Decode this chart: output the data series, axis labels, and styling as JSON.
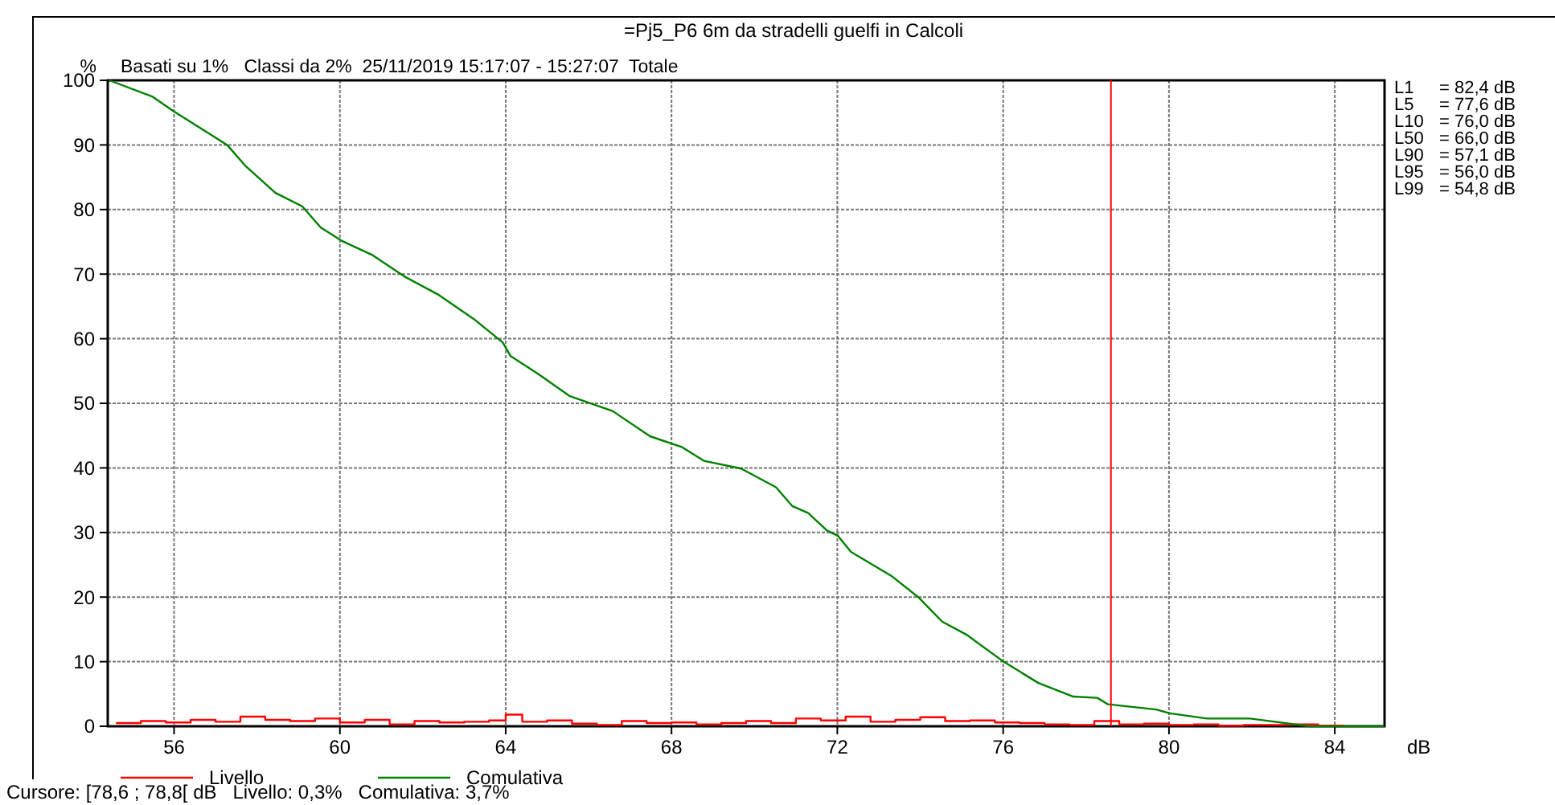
{
  "chart_data": {
    "type": "line",
    "title": "=Pj5_P6 6m da stradelli guelfi in Calcoli",
    "subtitle": "Basati su 1%   Classi da 2%  25/11/2019 15:17:07 - 15:27:07  Totale",
    "xlabel": "dB",
    "ylabel": "%",
    "xlim": [
      54.4,
      85.2
    ],
    "xticks": [
      56,
      60,
      64,
      68,
      72,
      76,
      80,
      84
    ],
    "ylim": [
      0,
      100
    ],
    "yticks": [
      0,
      10,
      20,
      30,
      40,
      50,
      60,
      70,
      80,
      90,
      100
    ],
    "grid": true,
    "legend": "bottom",
    "marker": "none",
    "line_style": "solid",
    "series": [
      {
        "name": "Livello",
        "type": "step",
        "color": "#ff0000",
        "x": [
          54.6,
          55.2,
          55.8,
          56.4,
          57.0,
          57.6,
          58.2,
          58.8,
          59.4,
          60.0,
          60.6,
          61.2,
          61.8,
          62.4,
          63.0,
          63.6,
          64.0,
          64.4,
          65.0,
          65.6,
          66.2,
          66.8,
          67.4,
          68.0,
          68.6,
          69.2,
          69.8,
          70.4,
          71.0,
          71.6,
          72.2,
          72.8,
          73.4,
          74.0,
          74.6,
          75.2,
          75.8,
          76.4,
          77.0,
          77.6,
          78.2,
          78.8,
          79.4,
          80.0,
          80.6,
          81.2,
          81.8,
          82.4,
          83.0,
          83.6,
          84.2
        ],
        "values": [
          0.5,
          0.8,
          0.6,
          1.0,
          0.7,
          1.5,
          1.0,
          0.8,
          1.2,
          0.6,
          1.0,
          0.3,
          0.8,
          0.6,
          0.7,
          0.9,
          1.8,
          0.7,
          0.9,
          0.4,
          0.2,
          0.8,
          0.5,
          0.6,
          0.3,
          0.5,
          0.8,
          0.5,
          1.2,
          0.9,
          1.5,
          0.7,
          1.0,
          1.4,
          0.8,
          0.9,
          0.6,
          0.5,
          0.3,
          0.2,
          0.8,
          0.3,
          0.4,
          0.2,
          0.3,
          0.1,
          0.2,
          0.2,
          0.3,
          0.1,
          0.0
        ]
      },
      {
        "name": "Comulativa",
        "type": "line",
        "color": "#008000",
        "x": [
          54.44,
          55.47,
          55.99,
          56.76,
          57.28,
          57.73,
          58.44,
          59.09,
          59.54,
          60.06,
          60.77,
          61.54,
          62.38,
          63.22,
          63.93,
          64.12,
          64.77,
          65.55,
          66.58,
          67.48,
          68.26,
          68.78,
          69.68,
          70.52,
          70.91,
          71.3,
          71.75,
          72.01,
          72.33,
          73.3,
          73.95,
          74.53,
          75.11,
          76.01,
          76.85,
          77.69,
          78.27,
          78.53,
          79.69,
          80.02,
          80.92,
          81.96,
          83.38,
          85.19
        ],
        "values": [
          100,
          97.5,
          95.2,
          92.1,
          90.0,
          86.7,
          82.6,
          80.5,
          77.2,
          75.1,
          73.0,
          69.7,
          66.8,
          63.1,
          59.4,
          57.3,
          54.6,
          51.1,
          48.8,
          44.9,
          43.2,
          41.1,
          39.9,
          37.0,
          34.1,
          33.0,
          30.3,
          29.5,
          27.0,
          23.3,
          20.0,
          16.2,
          14.2,
          10.0,
          6.7,
          4.6,
          4.4,
          3.4,
          2.6,
          2.0,
          1.2,
          1.2,
          0,
          0
        ]
      }
    ],
    "ref_lines": [
      {
        "axis": "x",
        "value": 78.6,
        "color": "#ff0000",
        "line_style": "solid"
      }
    ],
    "annotations": [
      "L1     = 82,4 dB",
      "L5     = 77,6 dB",
      "L10   = 76,0 dB",
      "L50   = 66,0 dB",
      "L90   = 57,1 dB",
      "L95   = 56,0 dB",
      "L99   = 54,8 dB",
      "Cursore: [78,6 ; 78,8[ dB   Livello: 0,3%   Comulativa: 3,7%"
    ]
  }
}
